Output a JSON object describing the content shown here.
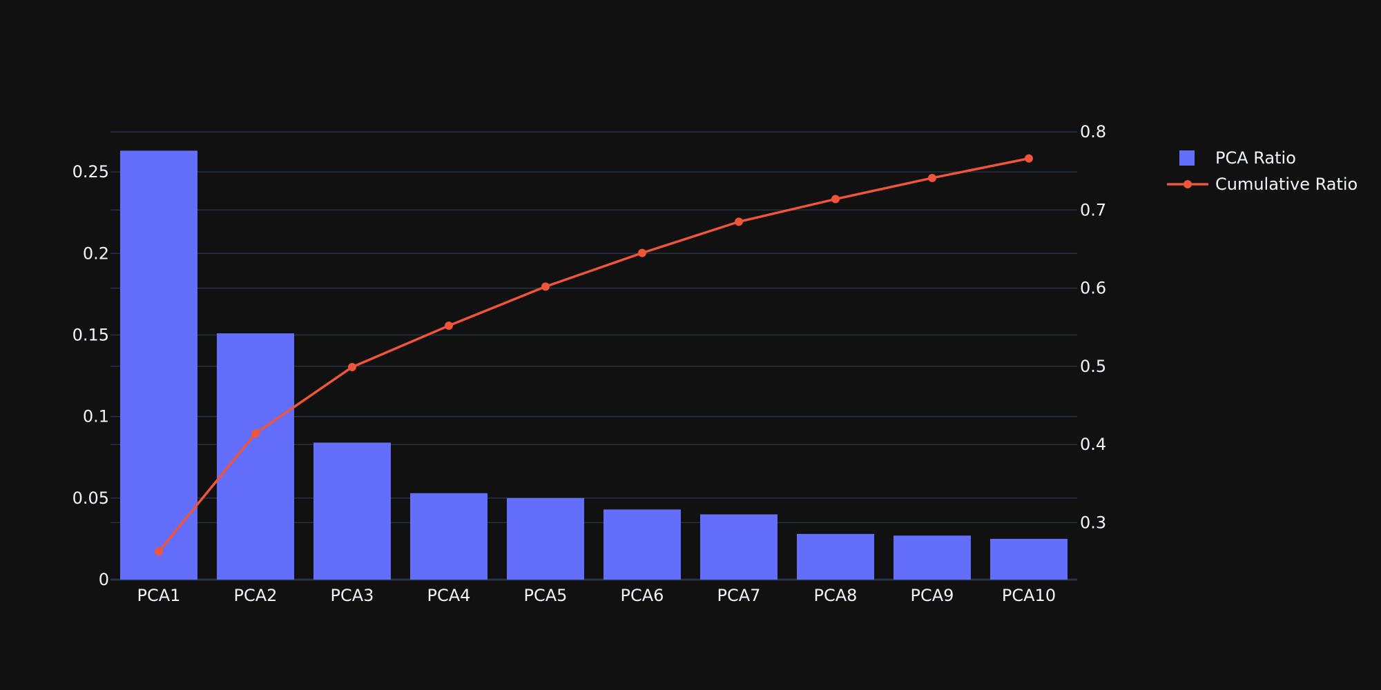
{
  "chart_data": {
    "type": "bar+line",
    "categories": [
      "PCA1",
      "PCA2",
      "PCA3",
      "PCA4",
      "PCA5",
      "PCA6",
      "PCA7",
      "PCA8",
      "PCA9",
      "PCA10"
    ],
    "series": [
      {
        "name": "PCA Ratio",
        "type": "bar",
        "axis": "left",
        "values": [
          0.263,
          0.151,
          0.084,
          0.053,
          0.05,
          0.043,
          0.04,
          0.028,
          0.027,
          0.025
        ]
      },
      {
        "name": "Cumulative Ratio",
        "type": "line",
        "axis": "right",
        "values": [
          0.263,
          0.414,
          0.499,
          0.552,
          0.602,
          0.645,
          0.685,
          0.714,
          0.741,
          0.766
        ]
      }
    ],
    "y_left": {
      "range": [
        0,
        0.275
      ],
      "ticks": [
        0,
        0.05,
        0.1,
        0.15,
        0.2,
        0.25
      ],
      "tick_labels": [
        "0",
        "0.05",
        "0.1",
        "0.15",
        "0.2",
        "0.25"
      ]
    },
    "y_right": {
      "range": [
        0.227,
        0.801
      ],
      "ticks": [
        0.3,
        0.4,
        0.5,
        0.6,
        0.7,
        0.8
      ],
      "tick_labels": [
        "0.3",
        "0.4",
        "0.5",
        "0.6",
        "0.7",
        "0.8"
      ]
    },
    "grid": true,
    "legend_position": "top-right",
    "colors": {
      "background": "#111111",
      "bar": "#636efa",
      "line": "#ef553b",
      "grid": "#283442",
      "text": "#f2f5fa"
    }
  }
}
